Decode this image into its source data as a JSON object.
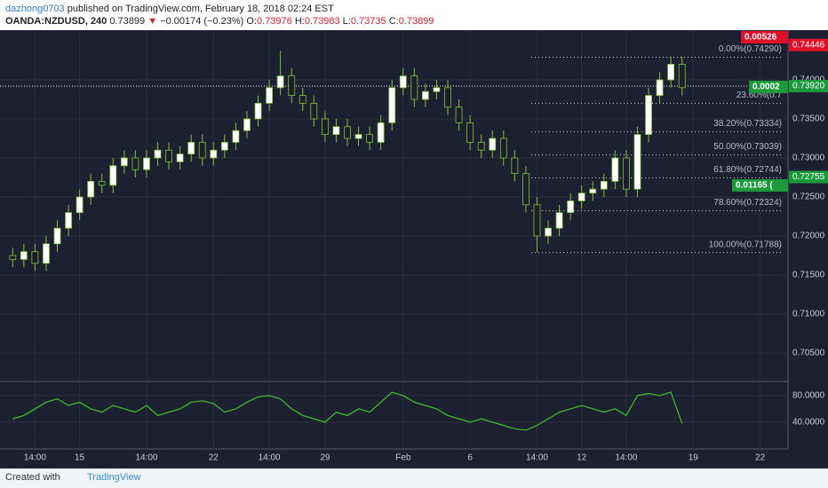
{
  "header": {
    "user": "dazhong0703",
    "published": "published on TradingView.com, February 18, 2018 02:24 EST",
    "symbol": "OANDA:NZDUSD, 240",
    "last": "0.73899",
    "arrow": "▼",
    "change": "−0.00174 (−0.23%)",
    "o_label": "O:",
    "o": "0.73976",
    "h_label": "H:",
    "h": "0.73983",
    "l_label": "L:",
    "l": "0.73735",
    "c_label": "C:",
    "c": "0.73899"
  },
  "footer": {
    "created": "Created with",
    "brand": "TradingView"
  },
  "chart_data": {
    "type": "candlestick",
    "categories": [
      null,
      null,
      "14:00",
      null,
      null,
      null,
      "15",
      null,
      null,
      null,
      null,
      null,
      "14:00",
      null,
      null,
      null,
      null,
      null,
      "22",
      null,
      null,
      null,
      null,
      "14:00",
      null,
      null,
      null,
      null,
      "29",
      null,
      null,
      null,
      null,
      null,
      null,
      "Feb",
      null,
      null,
      null,
      null,
      null,
      "6",
      null,
      null,
      null,
      null,
      null,
      "14:00",
      null,
      null,
      null,
      "12",
      null,
      null,
      null,
      "14:00",
      null,
      null,
      null,
      null,
      null,
      "19",
      null,
      null,
      null,
      null,
      null,
      "22",
      null,
      null
    ],
    "open": [
      0.7175,
      0.717,
      0.718,
      0.7165,
      0.719,
      0.721,
      0.723,
      0.725,
      0.727,
      0.7265,
      0.729,
      0.73,
      0.7285,
      0.73,
      0.731,
      0.7295,
      0.7305,
      0.732,
      0.73,
      0.731,
      0.732,
      0.7335,
      0.735,
      0.737,
      0.739,
      0.7405,
      0.738,
      0.737,
      0.735,
      0.733,
      0.734,
      0.7325,
      0.733,
      0.732,
      0.7345,
      0.739,
      0.7405,
      0.7375,
      0.7385,
      0.739,
      0.7365,
      0.7345,
      0.732,
      0.731,
      0.7325,
      0.73,
      0.728,
      0.724,
      0.72,
      0.721,
      0.723,
      0.7245,
      0.7255,
      0.726,
      0.727,
      0.73,
      0.726,
      0.733,
      0.738,
      0.74,
      0.742,
      null,
      null,
      null,
      null,
      null,
      null,
      null,
      null,
      null
    ],
    "high": [
      0.7185,
      0.719,
      0.719,
      0.72,
      0.722,
      0.724,
      0.726,
      0.728,
      0.728,
      0.73,
      0.731,
      0.731,
      0.731,
      0.732,
      0.732,
      0.7315,
      0.733,
      0.733,
      0.732,
      0.733,
      0.7345,
      0.736,
      0.738,
      0.74,
      0.7437,
      0.7415,
      0.739,
      0.738,
      0.736,
      0.735,
      0.735,
      0.734,
      0.734,
      0.7355,
      0.74,
      0.7415,
      0.7415,
      0.7395,
      0.74,
      0.74,
      0.7375,
      0.7355,
      0.733,
      0.7335,
      0.7335,
      0.731,
      0.729,
      0.725,
      0.722,
      0.724,
      0.7255,
      0.7265,
      0.727,
      0.728,
      0.731,
      0.731,
      0.734,
      0.739,
      0.741,
      0.743,
      0.743,
      null,
      null,
      null,
      null,
      null,
      null,
      null,
      null,
      null
    ],
    "low": [
      0.716,
      0.716,
      0.7155,
      0.7155,
      0.718,
      0.72,
      0.722,
      0.724,
      0.7255,
      0.7255,
      0.728,
      0.7275,
      0.7275,
      0.729,
      0.7285,
      0.7285,
      0.7295,
      0.729,
      0.729,
      0.73,
      0.731,
      0.7325,
      0.734,
      0.736,
      0.738,
      0.737,
      0.736,
      0.734,
      0.732,
      0.732,
      0.7315,
      0.7315,
      0.731,
      0.731,
      0.7335,
      0.738,
      0.7365,
      0.7365,
      0.7375,
      0.7355,
      0.7335,
      0.731,
      0.73,
      0.73,
      0.729,
      0.727,
      0.723,
      0.7179,
      0.719,
      0.72,
      0.722,
      0.7235,
      0.7245,
      0.725,
      0.726,
      0.725,
      0.725,
      0.732,
      0.737,
      0.739,
      0.738,
      null,
      null,
      null,
      null,
      null,
      null,
      null,
      null,
      null
    ],
    "close": [
      0.717,
      0.718,
      0.7165,
      0.719,
      0.721,
      0.723,
      0.725,
      0.727,
      0.7265,
      0.729,
      0.73,
      0.7285,
      0.73,
      0.731,
      0.7295,
      0.7305,
      0.732,
      0.73,
      0.731,
      0.732,
      0.7335,
      0.735,
      0.737,
      0.739,
      0.7405,
      0.738,
      0.737,
      0.735,
      0.733,
      0.734,
      0.7325,
      0.733,
      0.732,
      0.7345,
      0.739,
      0.7405,
      0.7375,
      0.7385,
      0.739,
      0.7365,
      0.7345,
      0.732,
      0.731,
      0.7325,
      0.73,
      0.728,
      0.724,
      0.72,
      0.721,
      0.723,
      0.7245,
      0.7255,
      0.726,
      0.727,
      0.73,
      0.726,
      0.733,
      0.738,
      0.74,
      0.742,
      0.739,
      null,
      null,
      null,
      null,
      null,
      null,
      null,
      null,
      null
    ],
    "up_color": "#ffffff",
    "down_color": "#1b1f2b",
    "wick_color": "#7cc43a",
    "ylim": [
      0.70159,
      0.74625
    ],
    "yticks": [
      {
        "value": 0.705,
        "label": "0.70500"
      },
      {
        "value": 0.71,
        "label": "0.71000"
      },
      {
        "value": 0.715,
        "label": "0.71500"
      },
      {
        "value": 0.72,
        "label": "0.72000"
      },
      {
        "value": 0.725,
        "label": "0.72500"
      },
      {
        "value": 0.73,
        "label": "0.73000"
      },
      {
        "value": 0.735,
        "label": "0.73500"
      },
      {
        "value": 0.74,
        "label": "0.74000"
      }
    ],
    "grid": true,
    "fib": [
      {
        "label": "0.00%(0.74290)",
        "value": 0.7429
      },
      {
        "label": "23.60%(0.7",
        "value": 0.737
      },
      {
        "label": "38.20%(0.73334)",
        "value": 0.73334
      },
      {
        "label": "50.00%(0.73039)",
        "value": 0.73039
      },
      {
        "label": "61.80%(0.72744)",
        "value": 0.72744
      },
      {
        "label": "78.60%(0.72324)",
        "value": 0.72324
      },
      {
        "label": "100.00%(0.71788)",
        "value": 0.71788
      }
    ],
    "price_badges": [
      {
        "label": "0.74446",
        "value": 0.74446,
        "color": "#e0102a"
      },
      {
        "label": "0.73920",
        "value": 0.7392,
        "color": "#1a9a3a"
      },
      {
        "label": "0.72755",
        "value": 0.72755,
        "color": "#1a9a3a"
      }
    ],
    "info_boxes": [
      {
        "label": "0.00526",
        "color": "#e0102a"
      },
      {
        "label": "0.0002",
        "color": "#1a9a3a"
      },
      {
        "label": "0.01165 (",
        "color": "#1a9a3a"
      }
    ],
    "indicator": {
      "values": [
        45,
        50,
        60,
        70,
        75,
        65,
        70,
        60,
        55,
        65,
        60,
        55,
        65,
        50,
        55,
        60,
        70,
        72,
        68,
        55,
        60,
        70,
        78,
        80,
        75,
        60,
        50,
        45,
        40,
        55,
        50,
        60,
        55,
        70,
        85,
        80,
        70,
        65,
        60,
        50,
        45,
        40,
        45,
        40,
        35,
        30,
        28,
        35,
        45,
        55,
        60,
        65,
        60,
        55,
        60,
        50,
        80,
        83,
        80,
        85,
        38,
        null,
        null,
        null,
        null,
        null,
        null,
        null,
        null,
        null
      ],
      "color": "#3fc42a",
      "ylim": [
        1,
        101
      ],
      "yticks": [
        {
          "value": 40,
          "label": "40.0000"
        },
        {
          "value": 80,
          "label": "80.0000"
        }
      ]
    }
  }
}
